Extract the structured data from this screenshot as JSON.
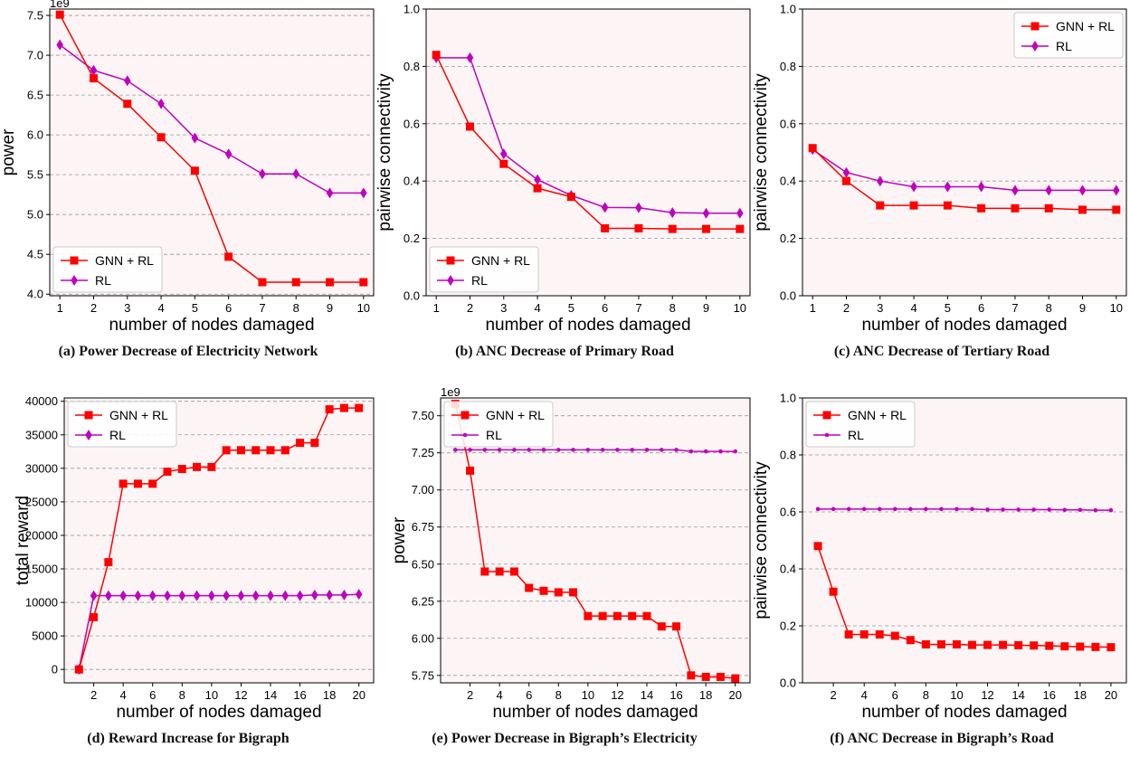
{
  "colors": {
    "gnn_rl": "#ff0000",
    "rl": "#bf00bf",
    "plot_bg": "#fdf5f5",
    "grid": "#999999"
  },
  "captions": [
    "(a) Power Decrease of Electricity Network",
    "(b) ANC Decrease of Primary Road",
    "(c) ANC Decrease of Tertiary Road",
    "(d) Reward Increase for Bigraph",
    "(e) Power Decrease in Bigraph’s Electricity",
    "(f) ANC Decrease in Bigraph’s Road"
  ],
  "chart_data": [
    {
      "type": "line",
      "title": "",
      "xlabel": "number of nodes damaged",
      "ylabel": "power",
      "offset_text": "1e9",
      "x": [
        1,
        2,
        3,
        4,
        5,
        6,
        7,
        8,
        9,
        10
      ],
      "xlim": [
        0.7,
        10.3
      ],
      "xticks": [
        1,
        2,
        3,
        4,
        5,
        6,
        7,
        8,
        9,
        10
      ],
      "ylim": [
        3.98,
        7.58
      ],
      "yticks": [
        4.0,
        4.5,
        5.0,
        5.5,
        6.0,
        6.5,
        7.0,
        7.5
      ],
      "ytick_labels": [
        "4.0",
        "4.5",
        "5.0",
        "5.5",
        "6.0",
        "6.5",
        "7.0",
        "7.5"
      ],
      "grid": "horizontal dashed",
      "legend": "lower-left",
      "series": [
        {
          "name": "GNN + RL",
          "marker": "square",
          "values": [
            7.51,
            6.71,
            6.39,
            5.97,
            5.55,
            4.47,
            4.15,
            4.15,
            4.15,
            4.15
          ]
        },
        {
          "name": "RL",
          "marker": "diamond",
          "values": [
            7.13,
            6.81,
            6.68,
            6.39,
            5.96,
            5.76,
            5.51,
            5.51,
            5.27,
            5.27
          ]
        }
      ]
    },
    {
      "type": "line",
      "title": "",
      "xlabel": "number of nodes damaged",
      "ylabel": "pairwise connectivity",
      "x": [
        1,
        2,
        3,
        4,
        5,
        6,
        7,
        8,
        9,
        10
      ],
      "xlim": [
        0.7,
        10.3
      ],
      "xticks": [
        1,
        2,
        3,
        4,
        5,
        6,
        7,
        8,
        9,
        10
      ],
      "ylim": [
        0,
        1.0
      ],
      "yticks": [
        0.0,
        0.2,
        0.4,
        0.6,
        0.8,
        1.0
      ],
      "ytick_labels": [
        "0.0",
        "0.2",
        "0.4",
        "0.6",
        "0.8",
        "1.0"
      ],
      "grid": "horizontal dashed",
      "legend": "lower-left",
      "series": [
        {
          "name": "GNN + RL",
          "marker": "square",
          "values": [
            0.84,
            0.59,
            0.46,
            0.375,
            0.345,
            0.235,
            0.235,
            0.233,
            0.233,
            0.233
          ]
        },
        {
          "name": "RL",
          "marker": "diamond",
          "values": [
            0.83,
            0.83,
            0.495,
            0.405,
            0.35,
            0.308,
            0.307,
            0.29,
            0.288,
            0.288
          ]
        }
      ]
    },
    {
      "type": "line",
      "title": "",
      "xlabel": "number of nodes damaged",
      "ylabel": "pairwise connectivity",
      "x": [
        1,
        2,
        3,
        4,
        5,
        6,
        7,
        8,
        9,
        10
      ],
      "xlim": [
        0.7,
        10.3
      ],
      "xticks": [
        1,
        2,
        3,
        4,
        5,
        6,
        7,
        8,
        9,
        10
      ],
      "ylim": [
        0,
        1.0
      ],
      "yticks": [
        0.0,
        0.2,
        0.4,
        0.6,
        0.8,
        1.0
      ],
      "ytick_labels": [
        "0.0",
        "0.2",
        "0.4",
        "0.6",
        "0.8",
        "1.0"
      ],
      "grid": "horizontal dashed",
      "legend": "upper-right",
      "series": [
        {
          "name": "GNN + RL",
          "marker": "square",
          "values": [
            0.515,
            0.4,
            0.315,
            0.315,
            0.315,
            0.305,
            0.305,
            0.305,
            0.3,
            0.3
          ]
        },
        {
          "name": "RL",
          "marker": "diamond",
          "values": [
            0.51,
            0.43,
            0.4,
            0.38,
            0.38,
            0.38,
            0.368,
            0.368,
            0.368,
            0.368
          ]
        }
      ]
    },
    {
      "type": "line",
      "title": "",
      "xlabel": "number of nodes damaged",
      "ylabel": "total reward",
      "x": [
        1,
        2,
        3,
        4,
        5,
        6,
        7,
        8,
        9,
        10,
        11,
        12,
        13,
        14,
        15,
        16,
        17,
        18,
        19,
        20
      ],
      "xlim": [
        0,
        21
      ],
      "xticks": [
        2,
        4,
        6,
        8,
        10,
        12,
        14,
        16,
        18,
        20
      ],
      "ylim": [
        -2000,
        40500
      ],
      "yticks": [
        0,
        5000,
        10000,
        15000,
        20000,
        25000,
        30000,
        35000,
        40000
      ],
      "ytick_labels": [
        "0",
        "5000",
        "10000",
        "15000",
        "20000",
        "25000",
        "30000",
        "35000",
        "40000"
      ],
      "grid": "horizontal dashed",
      "legend": "upper-left",
      "series": [
        {
          "name": "GNN + RL",
          "marker": "square",
          "values": [
            0,
            7800,
            16000,
            27700,
            27700,
            27700,
            29500,
            29900,
            30200,
            30200,
            32700,
            32700,
            32700,
            32700,
            32700,
            33800,
            33800,
            38800,
            39000,
            39000
          ]
        },
        {
          "name": "RL",
          "marker": "diamond",
          "values": [
            0,
            11000,
            11000,
            11000,
            11000,
            11000,
            11000,
            11000,
            11000,
            11000,
            11000,
            11000,
            11000,
            11000,
            11000,
            11000,
            11100,
            11100,
            11100,
            11200
          ]
        }
      ]
    },
    {
      "type": "line",
      "title": "",
      "xlabel": "number of nodes damaged",
      "ylabel": "power",
      "offset_text": "1e9",
      "x": [
        1,
        2,
        3,
        4,
        5,
        6,
        7,
        8,
        9,
        10,
        11,
        12,
        13,
        14,
        15,
        16,
        17,
        18,
        19,
        20
      ],
      "xlim": [
        0,
        21
      ],
      "xticks": [
        2,
        4,
        6,
        8,
        10,
        12,
        14,
        16,
        18,
        20
      ],
      "ylim": [
        5.7,
        7.62
      ],
      "yticks": [
        5.75,
        6.0,
        6.25,
        6.5,
        6.75,
        7.0,
        7.25,
        7.5
      ],
      "ytick_labels": [
        "5.75",
        "6.00",
        "6.25",
        "6.50",
        "6.75",
        "7.00",
        "7.25",
        "7.50"
      ],
      "grid": "horizontal dashed",
      "legend": "upper-left",
      "series": [
        {
          "name": "GNN + RL",
          "marker": "square",
          "values": [
            7.58,
            7.13,
            6.45,
            6.45,
            6.45,
            6.34,
            6.32,
            6.31,
            6.31,
            6.15,
            6.15,
            6.15,
            6.15,
            6.15,
            6.08,
            6.08,
            5.75,
            5.74,
            5.74,
            5.73
          ]
        },
        {
          "name": "RL",
          "marker": "dot",
          "values": [
            7.27,
            7.27,
            7.27,
            7.27,
            7.27,
            7.27,
            7.27,
            7.27,
            7.27,
            7.27,
            7.27,
            7.27,
            7.27,
            7.27,
            7.27,
            7.27,
            7.26,
            7.26,
            7.26,
            7.26
          ]
        }
      ]
    },
    {
      "type": "line",
      "title": "",
      "xlabel": "number of nodes damaged",
      "ylabel": "pairwise connectivity",
      "x": [
        1,
        2,
        3,
        4,
        5,
        6,
        7,
        8,
        9,
        10,
        11,
        12,
        13,
        14,
        15,
        16,
        17,
        18,
        19,
        20
      ],
      "xlim": [
        0,
        21
      ],
      "xticks": [
        2,
        4,
        6,
        8,
        10,
        12,
        14,
        16,
        18,
        20
      ],
      "ylim": [
        0,
        1.0
      ],
      "yticks": [
        0.0,
        0.2,
        0.4,
        0.6,
        0.8,
        1.0
      ],
      "ytick_labels": [
        "0.0",
        "0.2",
        "0.4",
        "0.6",
        "0.8",
        "1.0"
      ],
      "grid": "horizontal dashed",
      "legend": "upper-left",
      "series": [
        {
          "name": "GNN + RL",
          "marker": "square",
          "values": [
            0.48,
            0.32,
            0.17,
            0.17,
            0.17,
            0.165,
            0.15,
            0.135,
            0.135,
            0.135,
            0.133,
            0.133,
            0.133,
            0.132,
            0.131,
            0.13,
            0.128,
            0.127,
            0.126,
            0.125
          ]
        },
        {
          "name": "RL",
          "marker": "dot",
          "values": [
            0.61,
            0.61,
            0.61,
            0.61,
            0.61,
            0.61,
            0.61,
            0.61,
            0.61,
            0.61,
            0.61,
            0.608,
            0.608,
            0.608,
            0.608,
            0.608,
            0.607,
            0.607,
            0.606,
            0.606
          ]
        }
      ]
    }
  ]
}
